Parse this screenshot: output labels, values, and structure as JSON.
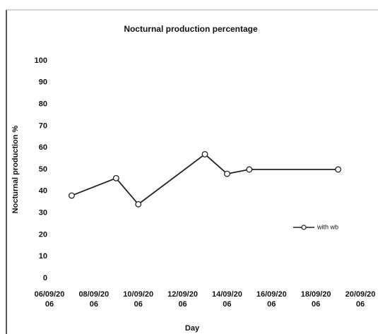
{
  "chart_data": {
    "type": "line",
    "title": "Nocturnal production percentage",
    "x_label": "Day",
    "y_label": "Nocturnal production %",
    "x": [
      "2006-09-07",
      "2006-09-09",
      "2006-09-10",
      "2006-09-13",
      "2006-09-14",
      "2006-09-15",
      "2006-09-19"
    ],
    "series": [
      {
        "name": "with wb",
        "color": "#222222",
        "values": [
          38,
          46,
          34,
          57,
          48,
          50,
          50
        ]
      }
    ],
    "xlim": [
      "2006-09-06",
      "2006-09-20"
    ],
    "xticks": [
      {
        "value": "2006-09-06",
        "label": "06/09/2006"
      },
      {
        "value": "2006-09-08",
        "label": "08/09/2006"
      },
      {
        "value": "2006-09-10",
        "label": "10/09/2006"
      },
      {
        "value": "2006-09-12",
        "label": "12/09/2006"
      },
      {
        "value": "2006-09-14",
        "label": "14/09/2006"
      },
      {
        "value": "2006-09-16",
        "label": "16/09/2006"
      },
      {
        "value": "2006-09-18",
        "label": "18/09/2006"
      },
      {
        "value": "2006-09-20",
        "label": "20/09/2006"
      }
    ],
    "ylim": [
      0,
      100
    ],
    "yticks": [
      0,
      10,
      20,
      30,
      40,
      50,
      60,
      70,
      80,
      90,
      100
    ],
    "grid": false,
    "legend": "right"
  }
}
